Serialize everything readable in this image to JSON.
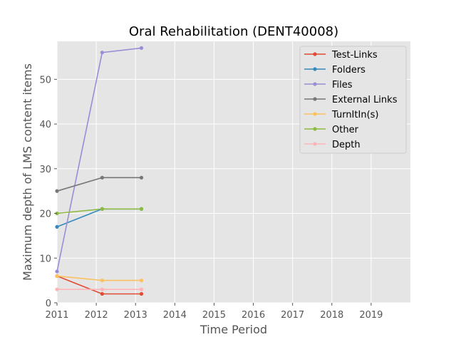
{
  "chart_data": {
    "type": "line",
    "title": "Oral Rehabilitation (DENT40008)",
    "xlabel": "Time Period",
    "ylabel": "Maximum depth of LMS content items",
    "xlim": [
      2011,
      2020
    ],
    "ylim": [
      0,
      58.5
    ],
    "x_ticks": [
      2011,
      2012,
      2013,
      2014,
      2015,
      2016,
      2017,
      2018,
      2019
    ],
    "y_ticks": [
      0,
      10,
      20,
      30,
      40,
      50
    ],
    "grid": true,
    "legend_position": "top-right",
    "x": [
      2011,
      2012.15,
      2013.15
    ],
    "series": [
      {
        "name": "Test-Links",
        "color": "#E24A33",
        "values": [
          6,
          2,
          2
        ]
      },
      {
        "name": "Folders",
        "color": "#348ABD",
        "values": [
          17,
          21,
          21
        ]
      },
      {
        "name": "Files",
        "color": "#988ED5",
        "values": [
          7,
          56,
          57
        ]
      },
      {
        "name": "External Links",
        "color": "#777777",
        "values": [
          25,
          28,
          28
        ]
      },
      {
        "name": "TurnItIn(s)",
        "color": "#FBC15E",
        "values": [
          6,
          5,
          5
        ]
      },
      {
        "name": "Other",
        "color": "#8EBA42",
        "values": [
          20,
          21,
          21
        ]
      },
      {
        "name": "Depth",
        "color": "#FFB5B8",
        "values": [
          3,
          3,
          3
        ]
      }
    ]
  }
}
